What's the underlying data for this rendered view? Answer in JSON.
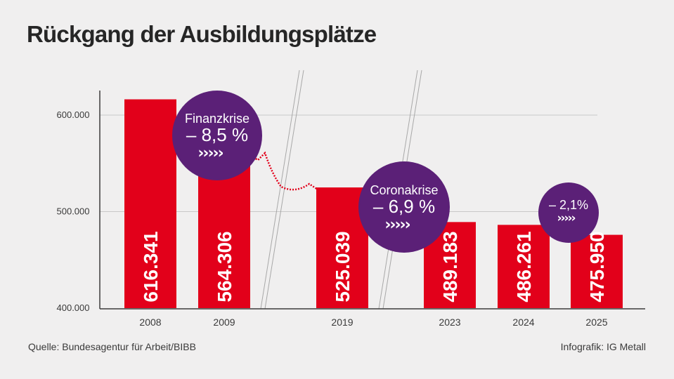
{
  "title": "Rückgang der Ausbildungsplätze",
  "source": "Quelle: Bundesagentur für Arbeit/BIBB",
  "credit": "Infografik: IG Metall",
  "colors": {
    "bar": "#e2001a",
    "bubble": "#5b2077",
    "background": "#f0efef",
    "grid": "#c8c8c8",
    "axis": "#3c3c3c"
  },
  "chart_data": {
    "type": "bar",
    "categories": [
      "2008",
      "2009",
      "2019",
      "2023",
      "2024",
      "2025"
    ],
    "values": [
      616341,
      564306,
      525039,
      489183,
      486261,
      475950
    ],
    "value_labels": [
      "616.341",
      "564.306",
      "525.039",
      "489.183",
      "486.261",
      "475.950"
    ],
    "y_ticks": [
      400000,
      500000,
      600000
    ],
    "y_tick_labels": [
      "400.000",
      "500.000",
      "600.000"
    ],
    "ylim": [
      400000,
      620000
    ],
    "grid": true,
    "axis_breaks": [
      "between 2009 and 2019",
      "between 2019 and 2023"
    ],
    "annotations": [
      {
        "label": "Finanzkrise",
        "value": "– 8,5 %",
        "arrows": "›››››"
      },
      {
        "label": "Coronakrise",
        "value": "– 6,9 %",
        "arrows": "›››››"
      },
      {
        "label": "",
        "value": "– 2,1%",
        "arrows": "›››››"
      }
    ]
  }
}
